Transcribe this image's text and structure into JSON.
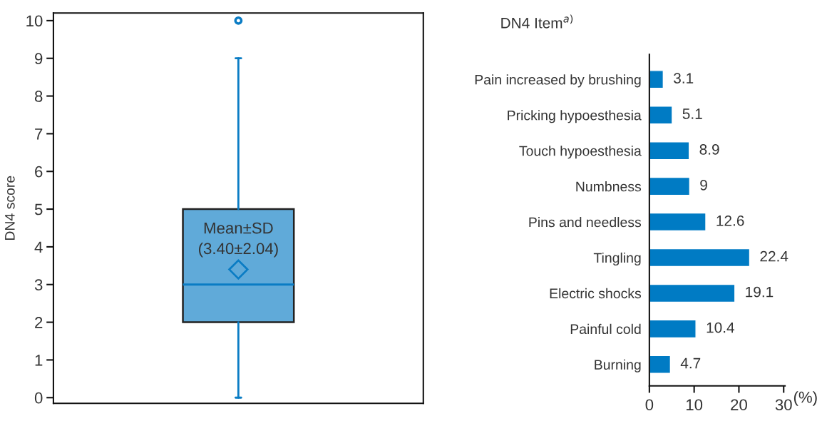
{
  "chart_data": [
    {
      "type": "box",
      "ylabel": "DN4 score",
      "categories": [
        null
      ],
      "color": "#0a7cc4",
      "boxes": [
        {
          "low": 0,
          "q1": 2,
          "median": 3,
          "q3": 5,
          "high": 9,
          "mean": 3.4,
          "outliers": [
            10
          ]
        }
      ],
      "ylim": [
        -0.15,
        10.2
      ],
      "yticks": [
        0,
        1,
        2,
        3,
        4,
        5,
        6,
        7,
        8,
        9,
        10
      ],
      "tick_labels": "y",
      "grid": false,
      "annotations": [
        "Mean±SD\n(3.40±2.04)"
      ]
    },
    {
      "type": "bar",
      "orientation": "horizontal",
      "title": "DN4 Item$^{a)}$",
      "xlabel": "(%)",
      "categories": [
        "Pain increased by brushing",
        "Pricking hypoesthesia",
        "Touch hypoesthesia",
        "Numbness",
        "Pins and needless",
        "Tingling",
        "Electric shocks",
        "Painful cold",
        "Burning"
      ],
      "values": [
        3.1,
        5.1,
        8.9,
        9,
        12.6,
        22.4,
        19.1,
        10.4,
        4.7
      ],
      "color": "#007bc4",
      "xlim": [
        0,
        30.3
      ],
      "xticks": [
        0,
        10,
        20,
        30
      ],
      "data_labels": true,
      "grid": false
    }
  ]
}
